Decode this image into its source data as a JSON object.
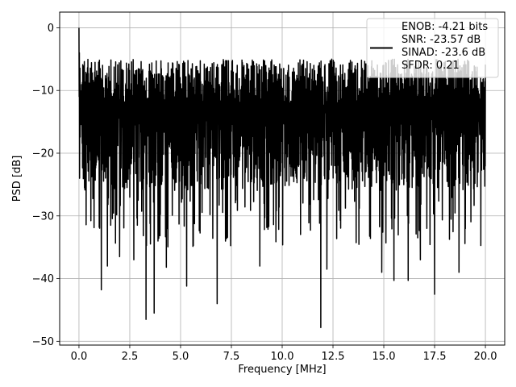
{
  "chart_data": {
    "type": "line",
    "title": "",
    "xlabel": "Frequency [MHz]",
    "ylabel": "PSD [dB]",
    "xlim": [
      -0.95,
      20.95
    ],
    "ylim": [
      -50.6,
      2.5
    ],
    "x_ticks": [
      0.0,
      2.5,
      5.0,
      7.5,
      10.0,
      12.5,
      15.0,
      17.5,
      20.0
    ],
    "x_tick_labels": [
      "0.0",
      "2.5",
      "5.0",
      "7.5",
      "10.0",
      "12.5",
      "15.0",
      "17.5",
      "20.0"
    ],
    "y_ticks": [
      0,
      -10,
      -20,
      -30,
      -40,
      -50
    ],
    "y_tick_labels": [
      "0",
      "−10",
      "−20",
      "−30",
      "−40",
      "−50"
    ],
    "grid": true,
    "legend_position": "top-right",
    "series": [
      {
        "name": "ENOB: -4.21 bits\nSNR: -23.57 dB\nSINAD: -23.6 dB\nSFDR: 0.21",
        "color": "#000000",
        "x_range": [
          0,
          20
        ],
        "num_points": 2048,
        "peak": {
          "x": 0.0,
          "y": 0.0
        },
        "floor_band": [
          -26,
          -12
        ],
        "peak_band": [
          -12,
          -5
        ],
        "notable_dips": [
          {
            "x": 1.1,
            "y": -41.8
          },
          {
            "x": 1.4,
            "y": -38.0
          },
          {
            "x": 2.0,
            "y": -36.5
          },
          {
            "x": 2.7,
            "y": -37.0
          },
          {
            "x": 3.3,
            "y": -46.5
          },
          {
            "x": 3.7,
            "y": -45.5
          },
          {
            "x": 4.3,
            "y": -38.2
          },
          {
            "x": 5.3,
            "y": -41.2
          },
          {
            "x": 6.8,
            "y": -44.0
          },
          {
            "x": 8.9,
            "y": -38.0
          },
          {
            "x": 11.9,
            "y": -47.8
          },
          {
            "x": 12.2,
            "y": -38.5
          },
          {
            "x": 14.9,
            "y": -39.0
          },
          {
            "x": 15.5,
            "y": -40.3
          },
          {
            "x": 16.2,
            "y": -40.3
          },
          {
            "x": 16.8,
            "y": -37.0
          },
          {
            "x": 17.5,
            "y": -42.5
          },
          {
            "x": 18.7,
            "y": -39.0
          }
        ]
      }
    ]
  }
}
